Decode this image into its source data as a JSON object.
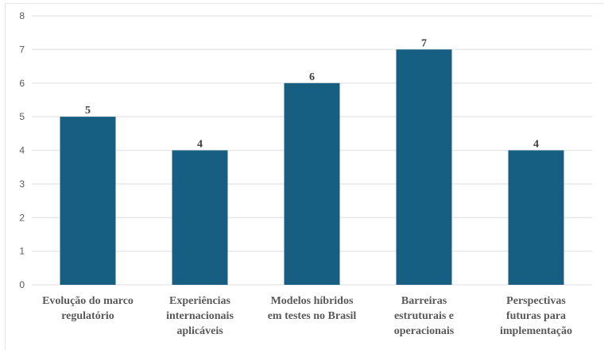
{
  "chart_data": {
    "type": "bar",
    "title": "",
    "xlabel": "",
    "ylabel": "",
    "categories": [
      [
        "Evolução do marco",
        "regulatório"
      ],
      [
        "Experiências",
        "internacionais",
        "aplicáveis"
      ],
      [
        "Modelos híbridos",
        "em testes no Brasil"
      ],
      [
        "Barreiras",
        "estruturais e",
        "operacionais"
      ],
      [
        "Perspectivas",
        "futuras para",
        "implementação"
      ]
    ],
    "values": [
      5,
      4,
      6,
      7,
      4
    ],
    "ylim": [
      0,
      8
    ],
    "yticks": [
      0,
      1,
      2,
      3,
      4,
      5,
      6,
      7,
      8
    ],
    "grid": true,
    "bar_color": "#175f82",
    "data_labels": true
  }
}
